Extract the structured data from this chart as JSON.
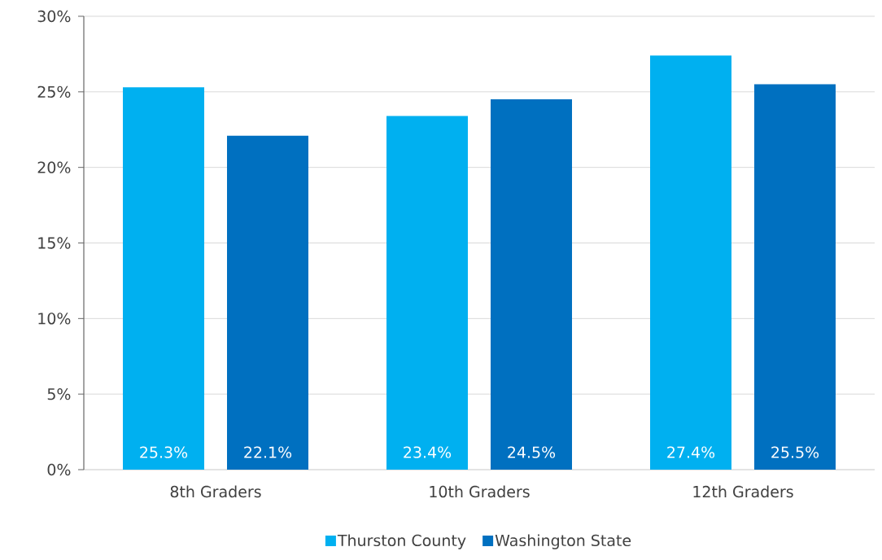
{
  "chart_data": {
    "type": "bar",
    "categories": [
      "8th Graders",
      "10th Graders",
      "12th Graders"
    ],
    "series": [
      {
        "name": "Thurston County",
        "color": "#00b0f0",
        "values": [
          25.3,
          23.4,
          27.4
        ],
        "value_labels": [
          "25.3%",
          "23.4%",
          "27.4%"
        ]
      },
      {
        "name": "Washington State",
        "color": "#0070c0",
        "values": [
          22.1,
          24.5,
          25.5
        ],
        "value_labels": [
          "22.1%",
          "24.5%",
          "25.5%"
        ]
      }
    ],
    "ylim": [
      0,
      30
    ],
    "yticks": [
      {
        "value": 0,
        "label": "0%"
      },
      {
        "value": 5,
        "label": "5%"
      },
      {
        "value": 10,
        "label": "10%"
      },
      {
        "value": 15,
        "label": "15%"
      },
      {
        "value": 20,
        "label": "20%"
      },
      {
        "value": 25,
        "label": "25%"
      },
      {
        "value": 30,
        "label": "30%"
      }
    ],
    "grid": "y",
    "legend": "bottom"
  }
}
